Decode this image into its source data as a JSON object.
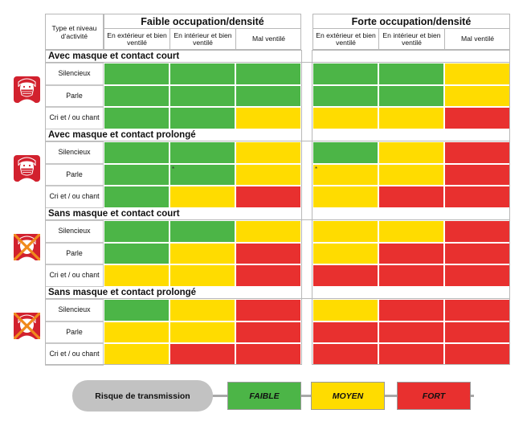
{
  "legend_colors": {
    "FAIBLE": "#4cb547",
    "MOYEN": "#ffdc00",
    "FORT": "#e8302f"
  },
  "chart_data": {
    "type": "table",
    "corner_label": "Type et niveau d'activité",
    "groups": [
      {
        "title": "Faible occupation/densité",
        "columns": [
          "En extérieur et bien ventilé",
          "En intérieur et bien ventilé",
          "Mal ventilé"
        ]
      },
      {
        "title": "Forte occupation/densité",
        "columns": [
          "En extérieur et bien ventilé",
          "En intérieur et bien ventilé",
          "Mal ventilé"
        ]
      }
    ],
    "rows": [
      "Silencieux",
      "Parle",
      "Cri et / ou chant"
    ],
    "sections": [
      {
        "title": "Avec masque et contact court",
        "icon": "face-mask-icon",
        "values": [
          [
            "FAIBLE",
            "FAIBLE",
            "FAIBLE",
            "FAIBLE",
            "FAIBLE",
            "MOYEN"
          ],
          [
            "FAIBLE",
            "FAIBLE",
            "FAIBLE",
            "FAIBLE",
            "FAIBLE",
            "MOYEN"
          ],
          [
            "FAIBLE",
            "FAIBLE",
            "MOYEN",
            "MOYEN",
            "MOYEN",
            "FORT"
          ]
        ]
      },
      {
        "title": "Avec masque et contact prolongé",
        "icon": "face-mask-icon",
        "values": [
          [
            "FAIBLE",
            "FAIBLE",
            "MOYEN",
            "FAIBLE",
            "MOYEN",
            "FORT"
          ],
          [
            "FAIBLE",
            "FAIBLE",
            "MOYEN",
            "MOYEN",
            "MOYEN",
            "FORT"
          ],
          [
            "FAIBLE",
            "MOYEN",
            "FORT",
            "MOYEN",
            "FORT",
            "FORT"
          ]
        ],
        "marks": [
          {
            "row": 1,
            "col": 1,
            "text": "*"
          },
          {
            "row": 1,
            "col": 3,
            "text": "*"
          }
        ]
      },
      {
        "title": "Sans masque et contact court",
        "icon": "no-mask-icon",
        "values": [
          [
            "FAIBLE",
            "FAIBLE",
            "MOYEN",
            "MOYEN",
            "MOYEN",
            "FORT"
          ],
          [
            "FAIBLE",
            "MOYEN",
            "FORT",
            "MOYEN",
            "FORT",
            "FORT"
          ],
          [
            "MOYEN",
            "MOYEN",
            "FORT",
            "FORT",
            "FORT",
            "FORT"
          ]
        ]
      },
      {
        "title": "Sans masque et contact prolongé",
        "icon": "no-mask-icon",
        "values": [
          [
            "FAIBLE",
            "MOYEN",
            "FORT",
            "MOYEN",
            "FORT",
            "FORT"
          ],
          [
            "MOYEN",
            "MOYEN",
            "FORT",
            "FORT",
            "FORT",
            "FORT"
          ],
          [
            "MOYEN",
            "FORT",
            "FORT",
            "FORT",
            "FORT",
            "FORT"
          ]
        ]
      }
    ],
    "legend": {
      "title": "Risque de transmission",
      "items": [
        "FAIBLE",
        "MOYEN",
        "FORT"
      ]
    }
  }
}
